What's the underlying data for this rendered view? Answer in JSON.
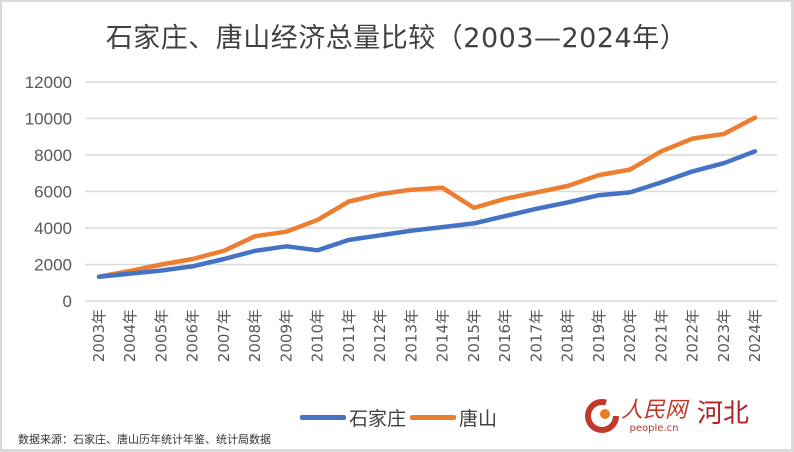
{
  "chart_data": {
    "type": "line",
    "title": "石家庄、唐山经济总量比较（2003—2024年）",
    "xlabel": "",
    "ylabel": "",
    "ylim": [
      0,
      12000
    ],
    "yticks": [
      "0",
      "2000",
      "4000",
      "6000",
      "8000",
      "10000",
      "12000"
    ],
    "ytick_values": [
      0,
      2000,
      4000,
      6000,
      8000,
      10000,
      12000
    ],
    "grid": true,
    "legend_position": "bottom",
    "categories": [
      "2003年",
      "2004年",
      "2005年",
      "2006年",
      "2007年",
      "2008年",
      "2009年",
      "2010年",
      "2011年",
      "2012年",
      "2013年",
      "2014年",
      "2015年",
      "2016年",
      "2017年",
      "2018年",
      "2019年",
      "2020年",
      "2021年",
      "2022年",
      "2023年",
      "2024年"
    ],
    "series": [
      {
        "name": "石家庄",
        "color": "#4472c4",
        "values": [
          1330,
          1500,
          1670,
          1900,
          2300,
          2750,
          3000,
          2780,
          3350,
          3600,
          3850,
          4050,
          4250,
          4650,
          5050,
          5400,
          5800,
          5950,
          6500,
          7100,
          7550,
          8200
        ]
      },
      {
        "name": "唐山",
        "color": "#ed7d31",
        "values": [
          1330,
          1650,
          2000,
          2300,
          2750,
          3550,
          3800,
          4450,
          5450,
          5850,
          6100,
          6200,
          5100,
          5600,
          5950,
          6300,
          6900,
          7200,
          8200,
          8900,
          9150,
          10050
        ]
      }
    ]
  },
  "footer": {
    "source": "数据来源：石家庄、唐山历年统计年鉴、统计局数据",
    "logo_cn": "人民网",
    "logo_url": "people.cn",
    "logo_region": "河北"
  }
}
